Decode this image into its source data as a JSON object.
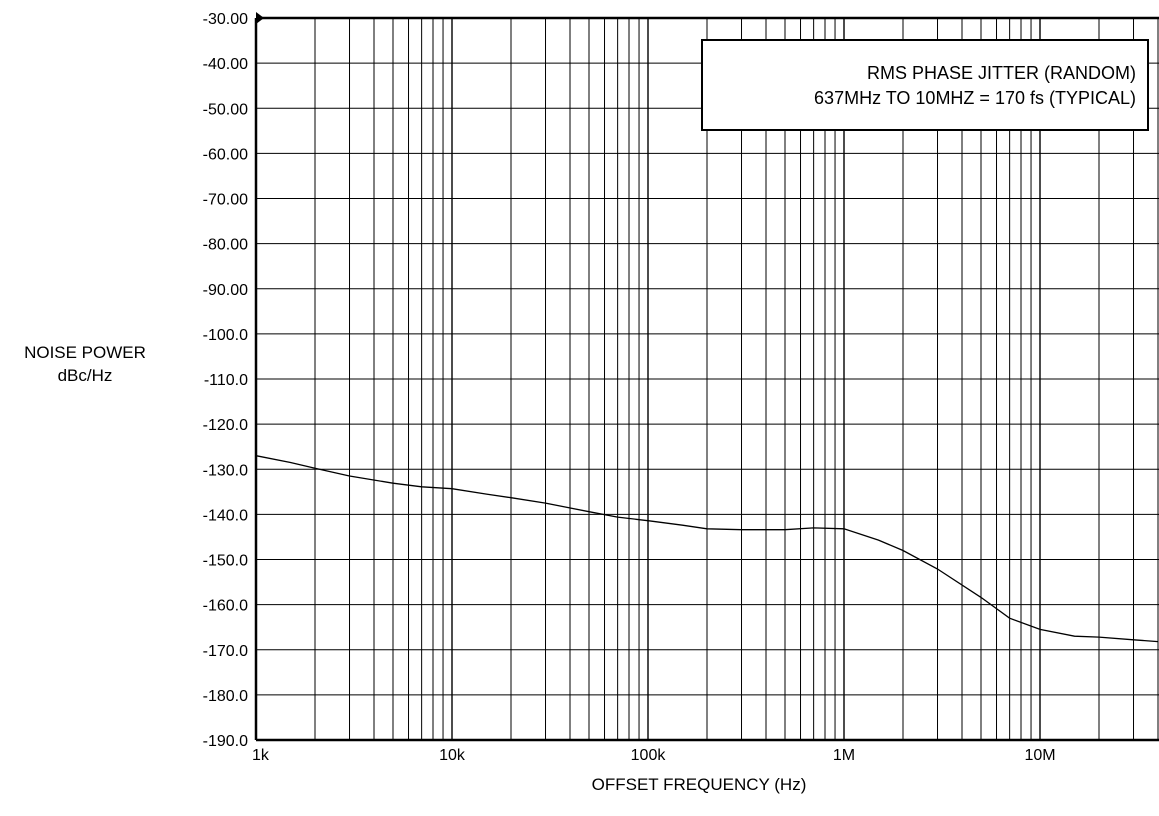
{
  "chart_data": {
    "type": "line",
    "title": "",
    "ylabel_line1": "NOISE POWER",
    "ylabel_line2": "dBc/Hz",
    "xlabel": "OFFSET FREQUENCY (Hz)",
    "x_scale": "log",
    "xlim": [
      1000,
      40000000
    ],
    "ylim": [
      -190,
      -30
    ],
    "grid": true,
    "x_ticks": [
      {
        "value": 1000,
        "label": "1k"
      },
      {
        "value": 10000,
        "label": "10k"
      },
      {
        "value": 100000,
        "label": "100k"
      },
      {
        "value": 1000000,
        "label": "1M"
      },
      {
        "value": 10000000,
        "label": "10M"
      }
    ],
    "y_ticks": [
      {
        "value": -30,
        "label": "-30.00"
      },
      {
        "value": -40,
        "label": "-40.00"
      },
      {
        "value": -50,
        "label": "-50.00"
      },
      {
        "value": -60,
        "label": "-60.00"
      },
      {
        "value": -70,
        "label": "-70.00"
      },
      {
        "value": -80,
        "label": "-80.00"
      },
      {
        "value": -90,
        "label": "-90.00"
      },
      {
        "value": -100,
        "label": "-100.0"
      },
      {
        "value": -110,
        "label": "-110.0"
      },
      {
        "value": -120,
        "label": "-120.0"
      },
      {
        "value": -130,
        "label": "-130.0"
      },
      {
        "value": -140,
        "label": "-140.0"
      },
      {
        "value": -150,
        "label": "-150.0"
      },
      {
        "value": -160,
        "label": "-160.0"
      },
      {
        "value": -170,
        "label": "-170.0"
      },
      {
        "value": -180,
        "label": "-180.0"
      },
      {
        "value": -190,
        "label": "-190.0"
      }
    ],
    "annotation": {
      "line1": "RMS PHASE JITTER (RANDOM)",
      "line2": "637MHz TO 10MHZ = 170 fs (TYPICAL)",
      "placement": "top-right"
    },
    "series": [
      {
        "x": [
          1000,
          1500,
          2000,
          3000,
          5000,
          7000,
          10000,
          15000,
          20000,
          30000,
          50000,
          70000,
          100000,
          150000,
          200000,
          300000,
          500000,
          700000,
          1000000,
          1500000,
          2000000,
          3000000,
          5000000,
          7000000,
          10000000,
          15000000,
          20000000,
          30000000,
          40000000
        ],
        "y": [
          -127,
          -128.5,
          -129.8,
          -131.5,
          -133.1,
          -133.9,
          -134.3,
          -135.5,
          -136.3,
          -137.5,
          -139.4,
          -140.6,
          -141.4,
          -142.4,
          -143.2,
          -143.4,
          -143.4,
          -143.0,
          -143.2,
          -145.7,
          -148.0,
          -152.1,
          -158.4,
          -163.0,
          -165.5,
          -167.0,
          -167.2,
          -167.8,
          -168.2
        ]
      }
    ]
  }
}
